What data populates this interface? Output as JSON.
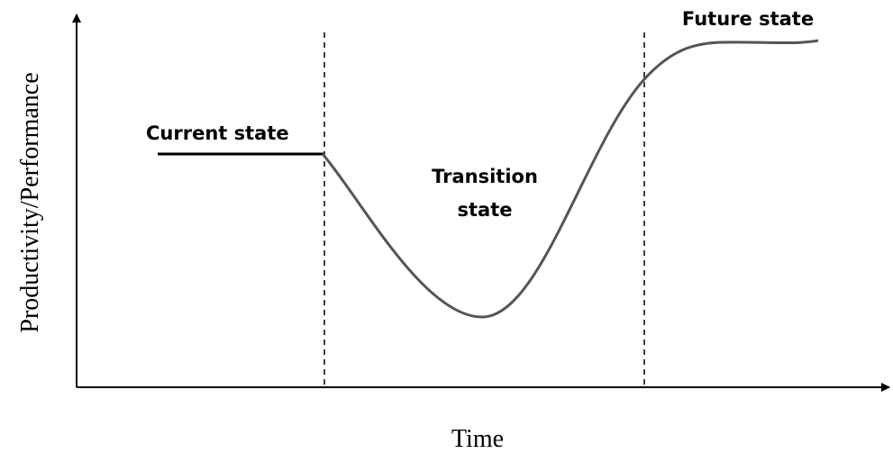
{
  "axes": {
    "y_label": "Productivity/Performance",
    "x_label": "Time"
  },
  "states": {
    "current": "Current state",
    "transition": [
      "Transition",
      "state"
    ],
    "future": "Future state"
  }
}
